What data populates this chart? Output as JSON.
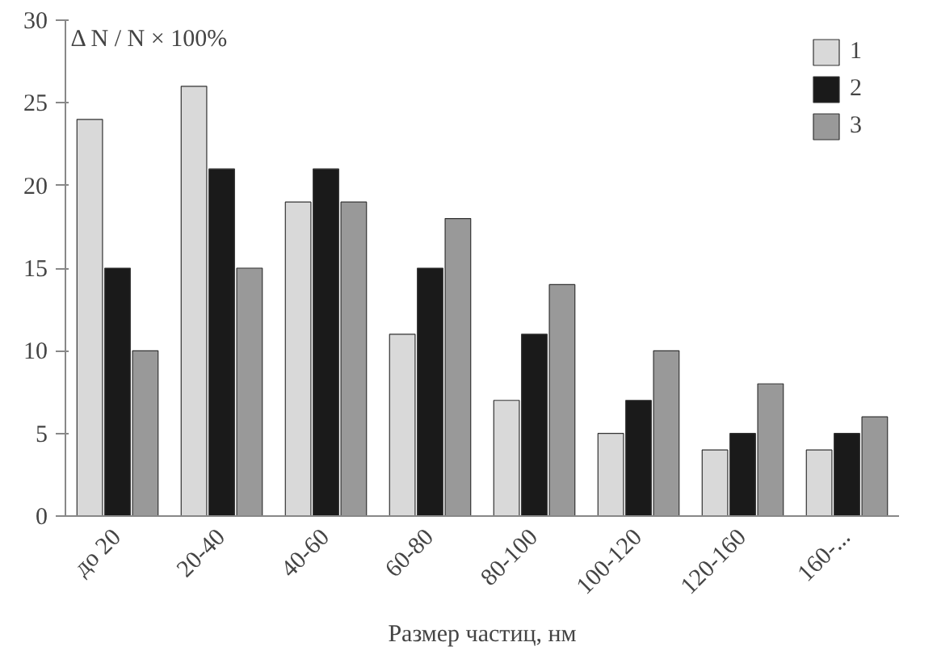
{
  "chart_data": {
    "type": "bar",
    "ylabel": "Δ N / N × 100%",
    "xlabel": "Размер частиц, нм",
    "categories": [
      "до 20",
      "20-40",
      "40-60",
      "60-80",
      "80-100",
      "100-120",
      "120-160",
      "160-..."
    ],
    "series": [
      {
        "name": "1",
        "color": "#d9d9d9",
        "values": [
          24,
          26,
          19,
          11,
          7,
          5,
          4,
          4
        ]
      },
      {
        "name": "2",
        "color": "#1a1a1a",
        "values": [
          15,
          21,
          21,
          15,
          11,
          7,
          5,
          5
        ]
      },
      {
        "name": "3",
        "color": "#999999",
        "values": [
          10,
          15,
          19,
          18,
          14,
          10,
          8,
          6
        ]
      }
    ],
    "ylim": [
      0,
      30
    ],
    "yticks": [
      0,
      5,
      10,
      15,
      20,
      25,
      30
    ],
    "grid": false,
    "legend": "top right"
  }
}
